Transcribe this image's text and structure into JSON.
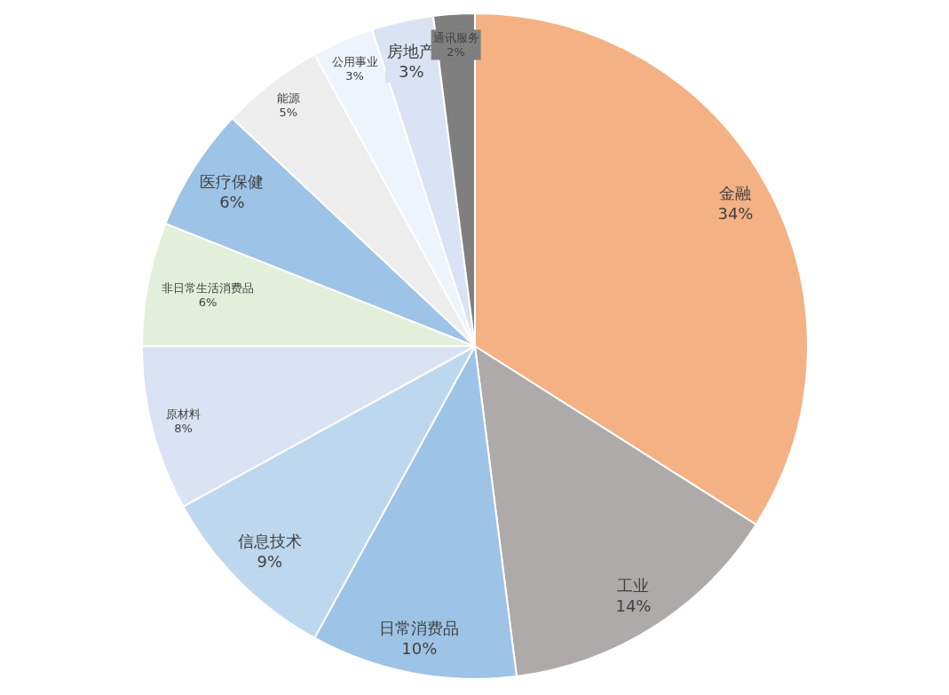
{
  "chart_data": {
    "type": "pie",
    "categories": [
      "金融",
      "工业",
      "日常消费品",
      "信息技术",
      "原材料",
      "非日常生活消费品",
      "医疗保健",
      "能源",
      "公用事业",
      "房地产",
      "通讯服务"
    ],
    "values": [
      34,
      14,
      10,
      9,
      8,
      6,
      6,
      5,
      3,
      3,
      2
    ],
    "value_labels": [
      "34%",
      "14%",
      "10%",
      "9%",
      "8%",
      "6%",
      "6%",
      "5%",
      "3%",
      "3%",
      "2%"
    ],
    "colors": [
      "#f4b183",
      "#aeaaaa",
      "#9dc3e6",
      "#bdd7ee",
      "#dae3f3",
      "#e2efda",
      "#9dc3e6",
      "#ededed",
      "#eef4fb",
      "#dae3f3",
      "#7f7f7f"
    ]
  }
}
